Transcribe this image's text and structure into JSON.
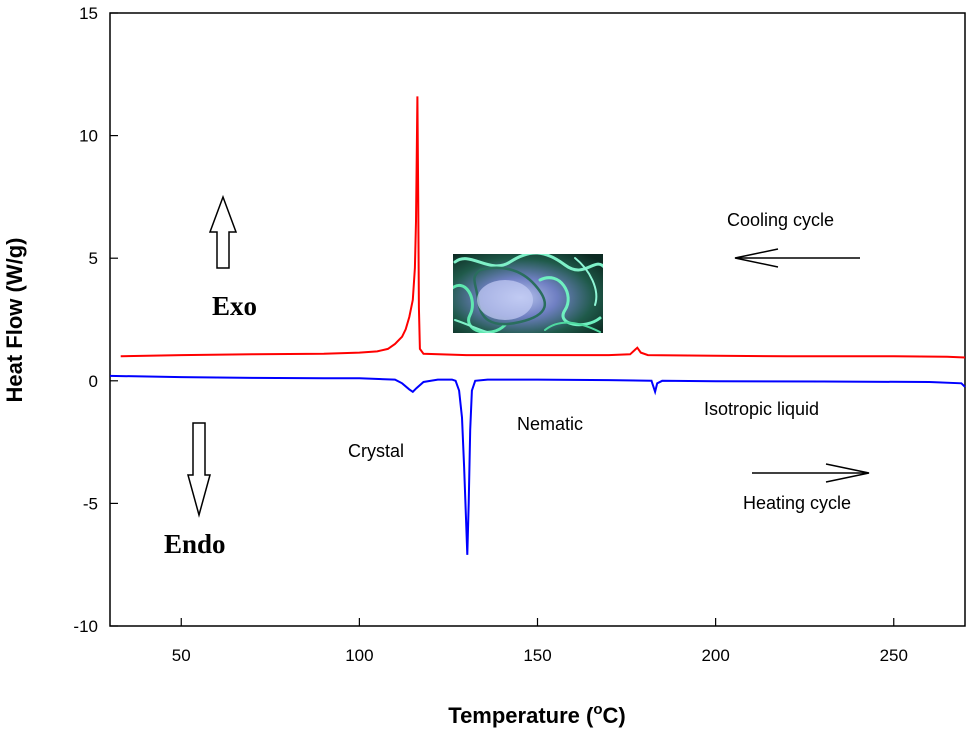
{
  "chart_data": {
    "type": "line",
    "xlabel": "Temperature (",
    "xlabel_sup": "o",
    "xlabel_end": "C)",
    "ylabel": "Heat Flow (W/g)",
    "xlim": [
      30,
      270
    ],
    "ylim": [
      -10,
      15
    ],
    "xticks": [
      50,
      100,
      150,
      200,
      250
    ],
    "yticks": [
      -10,
      -5,
      0,
      5,
      10,
      15
    ],
    "grid": false,
    "series": [
      {
        "color": "#ff0000",
        "points": [
          [
            33,
            1.0
          ],
          [
            50,
            1.05
          ],
          [
            70,
            1.08
          ],
          [
            90,
            1.1
          ],
          [
            100,
            1.15
          ],
          [
            105,
            1.2
          ],
          [
            108,
            1.3
          ],
          [
            110,
            1.5
          ],
          [
            112,
            1.8
          ],
          [
            113,
            2.1
          ],
          [
            114,
            2.6
          ],
          [
            115,
            3.3
          ],
          [
            115.6,
            4.6
          ],
          [
            115.9,
            6.5
          ],
          [
            116.1,
            9.0
          ],
          [
            116.3,
            11.6
          ],
          [
            116.5,
            7.5
          ],
          [
            116.7,
            3.0
          ],
          [
            117,
            1.3
          ],
          [
            118,
            1.1
          ],
          [
            130,
            1.05
          ],
          [
            150,
            1.05
          ],
          [
            170,
            1.05
          ],
          [
            176,
            1.08
          ],
          [
            178,
            1.35
          ],
          [
            179,
            1.15
          ],
          [
            181,
            1.05
          ],
          [
            200,
            1.02
          ],
          [
            220,
            1.0
          ],
          [
            250,
            1.0
          ],
          [
            265,
            0.98
          ],
          [
            270,
            0.95
          ]
        ]
      },
      {
        "color": "#0000ff",
        "points": [
          [
            30,
            0.2
          ],
          [
            50,
            0.15
          ],
          [
            70,
            0.12
          ],
          [
            90,
            0.1
          ],
          [
            100,
            0.1
          ],
          [
            110,
            0.05
          ],
          [
            112,
            -0.1
          ],
          [
            114,
            -0.35
          ],
          [
            115,
            -0.45
          ],
          [
            116,
            -0.3
          ],
          [
            118,
            -0.05
          ],
          [
            122,
            0.05
          ],
          [
            126,
            0.05
          ],
          [
            127,
            0.0
          ],
          [
            128,
            -0.4
          ],
          [
            128.8,
            -1.5
          ],
          [
            129.4,
            -3.5
          ],
          [
            129.9,
            -5.5
          ],
          [
            130.3,
            -7.1
          ],
          [
            130.7,
            -5.0
          ],
          [
            131.1,
            -2.0
          ],
          [
            131.6,
            -0.4
          ],
          [
            132.5,
            0.0
          ],
          [
            136,
            0.05
          ],
          [
            150,
            0.05
          ],
          [
            170,
            0.03
          ],
          [
            182,
            0.0
          ],
          [
            183,
            -0.45
          ],
          [
            183.6,
            -0.1
          ],
          [
            185,
            0.0
          ],
          [
            200,
            -0.02
          ],
          [
            230,
            -0.03
          ],
          [
            260,
            -0.05
          ],
          [
            269,
            -0.1
          ],
          [
            270,
            -0.25
          ]
        ]
      }
    ],
    "annotations": {
      "cooling": "Cooling cycle",
      "heating": "Heating cycle",
      "exo": "Exo",
      "endo": "Endo",
      "crystal": "Crystal",
      "nematic": "Nematic",
      "isotropic": "Isotropic liquid"
    }
  }
}
